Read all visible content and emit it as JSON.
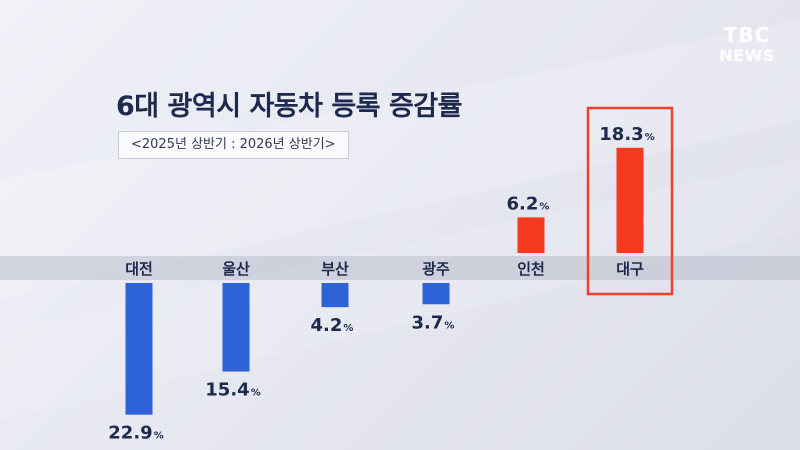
{
  "header": {
    "logo_line1": "TBC",
    "logo_line2": "NEWS"
  },
  "chart_data": {
    "type": "bar",
    "title": "6대 광역시 자동차 등록 증감률",
    "subtitle": "<2025년 상반기 : 2026년 상반기>",
    "categories": [
      "대전",
      "울산",
      "부산",
      "광주",
      "인천",
      "대구"
    ],
    "values": [
      -22.9,
      -15.4,
      -4.2,
      -3.7,
      6.2,
      18.3
    ],
    "labels": [
      "22.9",
      "15.4",
      "4.2",
      "3.7",
      "6.2",
      "18.3"
    ],
    "unit": "%",
    "highlight": "대구",
    "colors": {
      "negative": "#2e63d8",
      "positive": "#f33a1f",
      "highlight_box": "#f0412b"
    }
  }
}
